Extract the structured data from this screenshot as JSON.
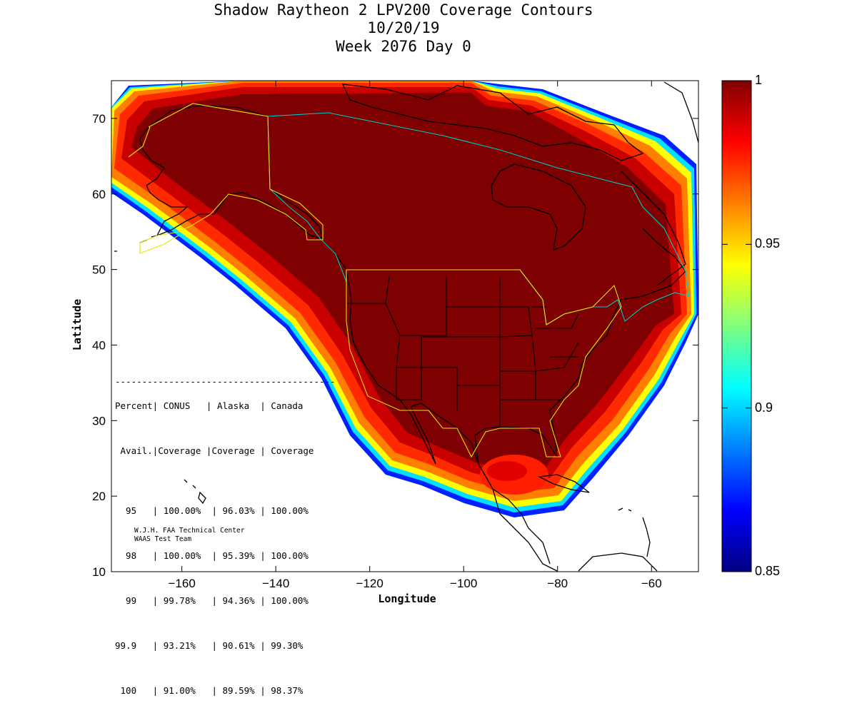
{
  "title": {
    "line1": "Shadow Raytheon 2 LPV200 Coverage Contours",
    "line2": "10/20/19",
    "line3": "Week 2076 Day 0"
  },
  "axes": {
    "xlabel": "Longitude",
    "ylabel": "Latitude",
    "xlim": [
      -175,
      -50
    ],
    "ylim": [
      10,
      75
    ],
    "x_ticks": [
      -160,
      -140,
      -120,
      -100,
      -80,
      -60
    ],
    "y_ticks": [
      10,
      20,
      30,
      40,
      50,
      60,
      70
    ]
  },
  "colorbar": {
    "min": 0.85,
    "max": 1,
    "tick_labels": [
      "1",
      "0.95",
      "0.9",
      "0.85"
    ],
    "tick_values": [
      1,
      0.95,
      0.9,
      0.85
    ],
    "colors": [
      "#00007f",
      "#0000ff",
      "#007fff",
      "#00ffff",
      "#7fff7f",
      "#ffff00",
      "#ff7f00",
      "#ff0000",
      "#7f0000"
    ]
  },
  "coverage_colors": {
    "full": "#7f0000",
    "high": "#c80000",
    "mid": "#ff2a00",
    "low": "#ff7f00",
    "edge_yellow": "#ffff00",
    "edge_cyan": "#00e0ff",
    "edge_blue": "#0020ff",
    "border_cyan": "#00c8c8",
    "border_yellow": "#e6e600"
  },
  "stats_table": {
    "header1": "Percent| CONUS   | Alaska  | Canada",
    "header2": " Avail.|Coverage |Coverage | Coverage",
    "rule": "-----------------------------------------",
    "rows": [
      "  95   | 100.00%  | 96.03% | 100.00%",
      "  98   | 100.00%  | 95.39% | 100.00%",
      "  99   | 99.78%   | 94.36% | 100.00%",
      "99.9   | 93.21%   | 90.61% | 99.30%",
      " 100   | 91.00%   | 89.59% | 98.37%"
    ]
  },
  "credit": {
    "line1": "W.J.H. FAA Technical Center",
    "line2": "WAAS Test Team"
  }
}
